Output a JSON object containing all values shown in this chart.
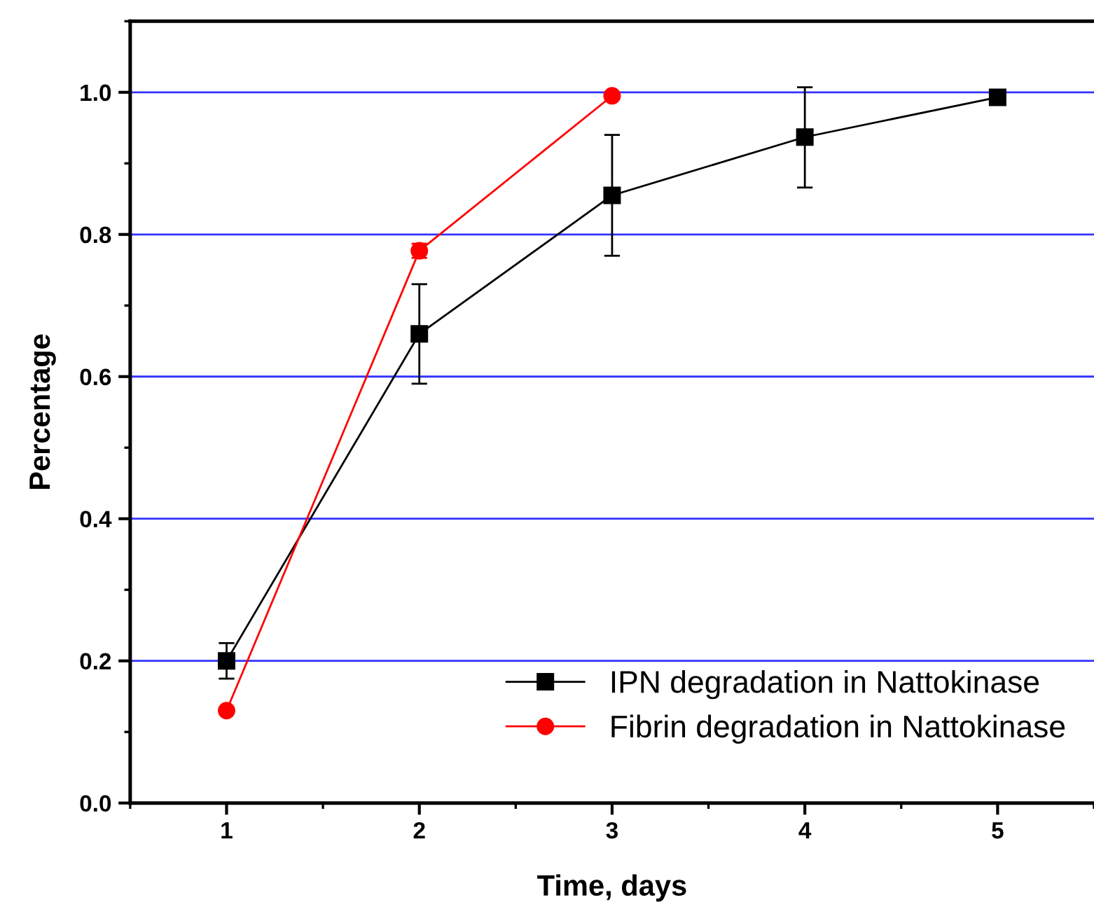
{
  "chart_data": {
    "type": "line",
    "xlabel": "Time, days",
    "ylabel": "Percentage",
    "x": [
      1,
      2,
      3,
      4,
      5
    ],
    "series": [
      {
        "name": "IPN degradation in Nattokinase",
        "color": "#000000",
        "marker": "square",
        "values": [
          0.2,
          0.66,
          0.855,
          0.937,
          0.993
        ],
        "errors": [
          [
            0.175,
            0.225
          ],
          [
            0.59,
            0.73
          ],
          [
            0.77,
            0.94
          ],
          [
            0.866,
            1.007
          ],
          null
        ]
      },
      {
        "name": "Fibrin degradation in Nattokinase",
        "color": "#ff0000",
        "marker": "circle",
        "x": [
          1,
          2,
          3
        ],
        "values": [
          0.13,
          0.777,
          0.995
        ],
        "errors": [
          null,
          0.01,
          null
        ]
      }
    ],
    "xlim": [
      0.5,
      5.5
    ],
    "xticks": [
      1,
      2,
      3,
      4,
      5
    ],
    "ylim": [
      0,
      1.1
    ],
    "yticks": [
      {
        "value": 0,
        "label": "0.0"
      },
      0.2,
      0.4,
      0.6,
      0.8,
      {
        "value": 1,
        "label": "1.0"
      }
    ],
    "grid": "y",
    "legend": "bottom right",
    "line_style": "solid"
  }
}
